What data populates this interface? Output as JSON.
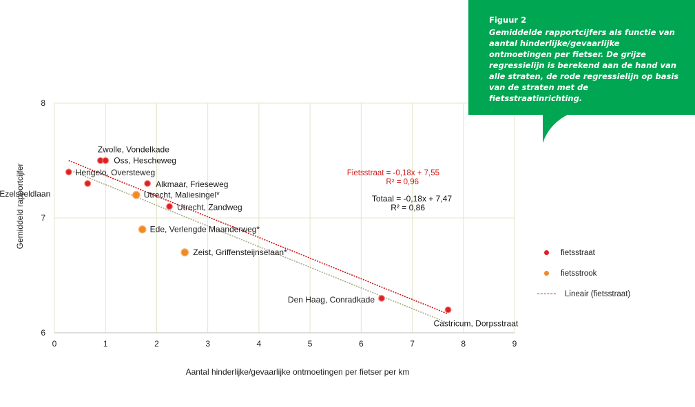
{
  "callout": {
    "title": "Figuur 2",
    "text": "Gemiddelde rapportcijfers als functie van aantal hinderlijke/gevaarlijke ontmoetingen per fietser. De grijze regressielijn is berekend aan de hand van alle straten, de rode regressielijn op basis van de straten met de fietsstraatinrichting."
  },
  "colors": {
    "fietsstraat": "#e02020",
    "fietsstrook": "#f08a24",
    "rode_lijn": "#cc1111",
    "grijze_lijn": "#a8a888",
    "grid": "#e4e4c8",
    "callout_bg": "#00a651"
  },
  "chart_data": {
    "type": "scatter",
    "xlabel": "Aantal hinderlijke/gevaarlijke ontmoetingen per fietser per km",
    "ylabel": "Gemiddeld rapportcijfer",
    "xlim": [
      0,
      9
    ],
    "ylim": [
      6,
      8
    ],
    "xticks": [
      0,
      1,
      2,
      3,
      4,
      5,
      6,
      7,
      8,
      9
    ],
    "yticks": [
      6,
      7,
      8
    ],
    "grid": true,
    "legend": {
      "position": "right",
      "entries": [
        "fietsstraat",
        "fietsstrook",
        "Lineair (fietsstraat)"
      ]
    },
    "series": [
      {
        "name": "fietsstraat",
        "points": [
          {
            "label": "Zwolle, Vondelkade",
            "x": 0.9,
            "y": 7.5
          },
          {
            "label": "Oss, Hescheweg",
            "x": 1.0,
            "y": 7.5
          },
          {
            "label": "Hengelo, Oversteweg",
            "x": 0.28,
            "y": 7.4
          },
          {
            "label": "Delft, Ezelsveldlaan",
            "x": 0.65,
            "y": 7.3
          },
          {
            "label": "Alkmaar, Frieseweg",
            "x": 1.82,
            "y": 7.3
          },
          {
            "label": "Utrecht, Zandweg",
            "x": 2.25,
            "y": 7.1
          },
          {
            "label": "Den Haag, Conradkade",
            "x": 6.4,
            "y": 6.3
          },
          {
            "label": "Castricum, Dorpsstraat",
            "x": 7.7,
            "y": 6.2
          }
        ]
      },
      {
        "name": "fietsstrook",
        "points": [
          {
            "label": "Utrecht, Maliesingel*",
            "x": 1.6,
            "y": 7.2
          },
          {
            "label": "Ede, Verlengde Maanderweg*",
            "x": 1.72,
            "y": 6.9
          },
          {
            "label": "Zeist, Griffensteijnselaan*",
            "x": 2.55,
            "y": 6.7
          }
        ]
      }
    ],
    "trendlines": [
      {
        "name": "Lineair (fietsstraat)",
        "slope": -0.18,
        "intercept": 7.55,
        "x": [
          0.28,
          7.7
        ]
      },
      {
        "name": "Totaal",
        "slope": -0.18,
        "intercept": 7.47,
        "x": [
          0.28,
          7.7
        ]
      }
    ],
    "annotations": {
      "fietsstraat_eq": "Fietsstraat = -0,18x + 7,55",
      "fietsstraat_r2": "R² = 0,96",
      "totaal_eq": "Totaal =  -0,18x + 7,47",
      "totaal_r2": "R² = 0,86"
    }
  }
}
